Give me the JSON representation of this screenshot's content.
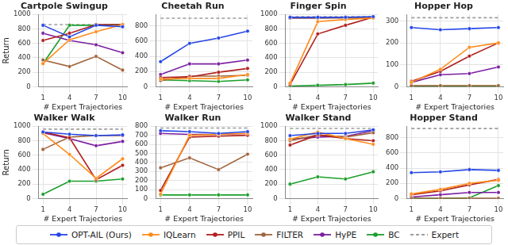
{
  "chart_data": [
    {
      "type": "line",
      "title": "Cartpole Swingup",
      "xlabel": "# Expert Trajectories",
      "ylabel": "Return",
      "grid": true,
      "legend": "bottom",
      "x": [
        1,
        4,
        7,
        10
      ],
      "xlim": [
        0.5,
        10.5
      ],
      "xticks": [
        1,
        4,
        7,
        10
      ],
      "ylim": [
        0,
        1000
      ],
      "yticks": [
        0,
        200,
        400,
        600,
        800,
        1000
      ],
      "series": [
        {
          "name": "OPT-AIL (Ours)",
          "color": "#2445e6",
          "marker": "circle",
          "line_style": "solid",
          "values": [
            850,
            690,
            850,
            830
          ]
        },
        {
          "name": "IQLearn",
          "color": "#ff8c1a",
          "marker": "circle",
          "line_style": "solid",
          "values": [
            320,
            650,
            760,
            860
          ]
        },
        {
          "name": "PPIL",
          "color": "#b0201e",
          "marker": "circle",
          "line_style": "solid",
          "values": [
            640,
            740,
            860,
            860
          ]
        },
        {
          "name": "FILTER",
          "color": "#a0643c",
          "marker": "circle",
          "line_style": "solid",
          "values": [
            370,
            280,
            420,
            230
          ]
        },
        {
          "name": "HyPE",
          "color": "#7b1fa2",
          "marker": "circle",
          "line_style": "solid",
          "values": [
            740,
            640,
            580,
            470
          ]
        },
        {
          "name": "BC",
          "color": "#1a9e2a",
          "marker": "circle",
          "line_style": "solid",
          "values": [
            320,
            850,
            850,
            860
          ]
        },
        {
          "name": "Expert",
          "color": "#9e9e9e",
          "marker": "none",
          "line_style": "dashed",
          "values": [
            860,
            860,
            860,
            860
          ]
        }
      ]
    },
    {
      "type": "line",
      "title": "Cheetah Run",
      "xlabel": "# Expert Trajectories",
      "grid": true,
      "legend": "bottom",
      "x": [
        1,
        4,
        7,
        10
      ],
      "xlim": [
        0.5,
        10.5
      ],
      "xticks": [
        1,
        4,
        7,
        10
      ],
      "ylim": [
        0,
        950
      ],
      "yticks": [
        0,
        200,
        400,
        600,
        800
      ],
      "series": [
        {
          "name": "OPT-AIL (Ours)",
          "color": "#2445e6",
          "marker": "circle",
          "line_style": "solid",
          "values": [
            330,
            570,
            640,
            730
          ]
        },
        {
          "name": "IQLearn",
          "color": "#ff8c1a",
          "marker": "circle",
          "line_style": "solid",
          "values": [
            100,
            110,
            110,
            160
          ]
        },
        {
          "name": "PPIL",
          "color": "#b0201e",
          "marker": "circle",
          "line_style": "solid",
          "values": [
            120,
            130,
            190,
            240
          ]
        },
        {
          "name": "FILTER",
          "color": "#a0643c",
          "marker": "circle",
          "line_style": "solid",
          "values": [
            80,
            140,
            140,
            150
          ]
        },
        {
          "name": "HyPE",
          "color": "#7b1fa2",
          "marker": "circle",
          "line_style": "solid",
          "values": [
            160,
            300,
            300,
            350
          ]
        },
        {
          "name": "BC",
          "color": "#1a9e2a",
          "marker": "circle",
          "line_style": "solid",
          "values": [
            90,
            80,
            70,
            90
          ]
        },
        {
          "name": "Expert",
          "color": "#9e9e9e",
          "marker": "none",
          "line_style": "dashed",
          "values": [
            900,
            900,
            900,
            900
          ]
        }
      ]
    },
    {
      "type": "line",
      "title": "Finger Spin",
      "xlabel": "# Expert Trajectories",
      "grid": true,
      "legend": "bottom",
      "x": [
        1,
        4,
        7,
        10
      ],
      "xlim": [
        0.5,
        10.5
      ],
      "xticks": [
        1,
        4,
        7,
        10
      ],
      "ylim": [
        0,
        1000
      ],
      "yticks": [
        0,
        200,
        400,
        600,
        800,
        1000
      ],
      "series": [
        {
          "name": "OPT-AIL (Ours)",
          "color": "#2445e6",
          "marker": "circle",
          "line_style": "solid",
          "values": [
            960,
            960,
            960,
            970
          ]
        },
        {
          "name": "IQLearn",
          "color": "#ff8c1a",
          "marker": "circle",
          "line_style": "solid",
          "values": [
            50,
            900,
            930,
            950
          ]
        },
        {
          "name": "PPIL",
          "color": "#b0201e",
          "marker": "circle",
          "line_style": "solid",
          "values": [
            30,
            730,
            850,
            960
          ]
        },
        {
          "name": "FILTER",
          "color": "#a0643c",
          "marker": "circle",
          "line_style": "solid",
          "values": [
            950,
            950,
            950,
            950
          ]
        },
        {
          "name": "HyPE",
          "color": "#7b1fa2",
          "marker": "circle",
          "line_style": "solid",
          "values": [
            950,
            950,
            960,
            960
          ]
        },
        {
          "name": "BC",
          "color": "#1a9e2a",
          "marker": "circle",
          "line_style": "solid",
          "values": [
            10,
            20,
            30,
            50
          ]
        },
        {
          "name": "Expert",
          "color": "#9e9e9e",
          "marker": "none",
          "line_style": "dashed",
          "values": [
            970,
            970,
            970,
            970
          ]
        }
      ]
    },
    {
      "type": "line",
      "title": "Hopper Hop",
      "xlabel": "# Expert Trajectories",
      "grid": true,
      "legend": "bottom",
      "x": [
        1,
        4,
        7,
        10
      ],
      "xlim": [
        0.5,
        10.5
      ],
      "xticks": [
        1,
        4,
        7,
        10
      ],
      "ylim": [
        0,
        330
      ],
      "yticks": [
        0,
        100,
        200,
        300
      ],
      "series": [
        {
          "name": "OPT-AIL (Ours)",
          "color": "#2445e6",
          "marker": "circle",
          "line_style": "solid",
          "values": [
            270,
            260,
            265,
            270
          ]
        },
        {
          "name": "IQLearn",
          "color": "#ff8c1a",
          "marker": "circle",
          "line_style": "solid",
          "values": [
            20,
            80,
            180,
            200
          ]
        },
        {
          "name": "PPIL",
          "color": "#b0201e",
          "marker": "circle",
          "line_style": "solid",
          "values": [
            25,
            70,
            140,
            200
          ]
        },
        {
          "name": "FILTER",
          "color": "#a0643c",
          "marker": "circle",
          "line_style": "solid",
          "values": [
            5,
            5,
            5,
            5
          ]
        },
        {
          "name": "HyPE",
          "color": "#7b1fa2",
          "marker": "circle",
          "line_style": "solid",
          "values": [
            20,
            55,
            60,
            90
          ]
        },
        {
          "name": "BC",
          "color": "#1a9e2a",
          "marker": "circle",
          "line_style": "solid",
          "values": [
            3,
            3,
            3,
            3
          ]
        },
        {
          "name": "Expert",
          "color": "#9e9e9e",
          "marker": "none",
          "line_style": "dashed",
          "values": [
            315,
            315,
            315,
            315
          ]
        }
      ]
    },
    {
      "type": "line",
      "title": "Walker Walk",
      "xlabel": "# Expert Trajectories",
      "ylabel": "Return",
      "grid": true,
      "legend": "bottom",
      "x": [
        1,
        4,
        7,
        10
      ],
      "xlim": [
        0.5,
        10.5
      ],
      "xticks": [
        1,
        4,
        7,
        10
      ],
      "ylim": [
        0,
        1000
      ],
      "yticks": [
        0,
        200,
        400,
        600,
        800,
        1000
      ],
      "series": [
        {
          "name": "OPT-AIL (Ours)",
          "color": "#2445e6",
          "marker": "circle",
          "line_style": "solid",
          "values": [
            920,
            890,
            870,
            880
          ]
        },
        {
          "name": "IQLearn",
          "color": "#ff8c1a",
          "marker": "circle",
          "line_style": "solid",
          "values": [
            900,
            610,
            280,
            550
          ]
        },
        {
          "name": "PPIL",
          "color": "#b0201e",
          "marker": "circle",
          "line_style": "solid",
          "values": [
            920,
            840,
            260,
            460
          ]
        },
        {
          "name": "FILTER",
          "color": "#a0643c",
          "marker": "circle",
          "line_style": "solid",
          "values": [
            680,
            850,
            870,
            870
          ]
        },
        {
          "name": "HyPE",
          "color": "#7b1fa2",
          "marker": "circle",
          "line_style": "solid",
          "values": [
            910,
            830,
            730,
            790
          ]
        },
        {
          "name": "BC",
          "color": "#1a9e2a",
          "marker": "circle",
          "line_style": "solid",
          "values": [
            60,
            240,
            240,
            270
          ]
        },
        {
          "name": "Expert",
          "color": "#9e9e9e",
          "marker": "none",
          "line_style": "dashed",
          "values": [
            960,
            960,
            960,
            960
          ]
        }
      ]
    },
    {
      "type": "line",
      "title": "Walker Run",
      "xlabel": "# Expert Trajectories",
      "grid": true,
      "legend": "bottom",
      "x": [
        1,
        4,
        7,
        10
      ],
      "xlim": [
        0.5,
        10.5
      ],
      "xticks": [
        1,
        4,
        7,
        10
      ],
      "ylim": [
        0,
        800
      ],
      "yticks": [
        0,
        100,
        200,
        300,
        400,
        500,
        600,
        700,
        800
      ],
      "series": [
        {
          "name": "OPT-AIL (Ours)",
          "color": "#2445e6",
          "marker": "circle",
          "line_style": "solid",
          "values": [
            750,
            740,
            720,
            740
          ]
        },
        {
          "name": "IQLearn",
          "color": "#ff8c1a",
          "marker": "circle",
          "line_style": "solid",
          "values": [
            50,
            700,
            710,
            720
          ]
        },
        {
          "name": "PPIL",
          "color": "#b0201e",
          "marker": "circle",
          "line_style": "solid",
          "values": [
            90,
            680,
            690,
            700
          ]
        },
        {
          "name": "FILTER",
          "color": "#a0643c",
          "marker": "circle",
          "line_style": "solid",
          "values": [
            340,
            450,
            320,
            490
          ]
        },
        {
          "name": "HyPE",
          "color": "#7b1fa2",
          "marker": "circle",
          "line_style": "solid",
          "values": [
            720,
            710,
            710,
            720
          ]
        },
        {
          "name": "BC",
          "color": "#1a9e2a",
          "marker": "circle",
          "line_style": "solid",
          "values": [
            40,
            40,
            40,
            40
          ]
        },
        {
          "name": "Expert",
          "color": "#9e9e9e",
          "marker": "none",
          "line_style": "dashed",
          "values": [
            780,
            780,
            780,
            780
          ]
        }
      ]
    },
    {
      "type": "line",
      "title": "Walker Stand",
      "xlabel": "# Expert Trajectories",
      "grid": true,
      "legend": "bottom",
      "x": [
        1,
        4,
        7,
        10
      ],
      "xlim": [
        0.5,
        10.5
      ],
      "xticks": [
        1,
        4,
        7,
        10
      ],
      "ylim": [
        0,
        1000
      ],
      "yticks": [
        0,
        200,
        400,
        600,
        800,
        1000
      ],
      "series": [
        {
          "name": "OPT-AIL (Ours)",
          "color": "#2445e6",
          "marker": "circle",
          "line_style": "solid",
          "values": [
            870,
            900,
            900,
            950
          ]
        },
        {
          "name": "IQLearn",
          "color": "#ff8c1a",
          "marker": "circle",
          "line_style": "solid",
          "values": [
            820,
            920,
            830,
            750
          ]
        },
        {
          "name": "PPIL",
          "color": "#b0201e",
          "marker": "circle",
          "line_style": "solid",
          "values": [
            740,
            880,
            830,
            800
          ]
        },
        {
          "name": "FILTER",
          "color": "#a0643c",
          "marker": "circle",
          "line_style": "solid",
          "values": [
            800,
            880,
            850,
            910
          ]
        },
        {
          "name": "HyPE",
          "color": "#7b1fa2",
          "marker": "circle",
          "line_style": "solid",
          "values": [
            820,
            850,
            860,
            940
          ]
        },
        {
          "name": "BC",
          "color": "#1a9e2a",
          "marker": "circle",
          "line_style": "solid",
          "values": [
            200,
            300,
            270,
            370
          ]
        },
        {
          "name": "Expert",
          "color": "#9e9e9e",
          "marker": "none",
          "line_style": "dashed",
          "values": [
            970,
            970,
            970,
            970
          ]
        }
      ]
    },
    {
      "type": "line",
      "title": "Hopper Stand",
      "xlabel": "# Expert Trajectories",
      "grid": true,
      "legend": "bottom",
      "x": [
        1,
        4,
        7,
        10
      ],
      "xlim": [
        0.5,
        10.5
      ],
      "xticks": [
        1,
        4,
        7,
        10
      ],
      "ylim": [
        0,
        950
      ],
      "yticks": [
        0,
        200,
        400,
        600,
        800
      ],
      "series": [
        {
          "name": "OPT-AIL (Ours)",
          "color": "#2445e6",
          "marker": "circle",
          "line_style": "solid",
          "values": [
            340,
            350,
            380,
            370
          ]
        },
        {
          "name": "IQLearn",
          "color": "#ff8c1a",
          "marker": "circle",
          "line_style": "solid",
          "values": [
            60,
            120,
            200,
            240
          ]
        },
        {
          "name": "PPIL",
          "color": "#b0201e",
          "marker": "circle",
          "line_style": "solid",
          "values": [
            50,
            100,
            180,
            250
          ]
        },
        {
          "name": "FILTER",
          "color": "#a0643c",
          "marker": "circle",
          "line_style": "solid",
          "values": [
            3,
            3,
            3,
            3
          ]
        },
        {
          "name": "HyPE",
          "color": "#7b1fa2",
          "marker": "circle",
          "line_style": "solid",
          "values": [
            20,
            50,
            80,
            80
          ]
        },
        {
          "name": "BC",
          "color": "#1a9e2a",
          "marker": "circle",
          "line_style": "solid",
          "values": [
            0,
            0,
            10,
            170
          ]
        },
        {
          "name": "Expert",
          "color": "#9e9e9e",
          "marker": "none",
          "line_style": "dashed",
          "values": [
            920,
            920,
            920,
            920
          ]
        }
      ]
    }
  ]
}
